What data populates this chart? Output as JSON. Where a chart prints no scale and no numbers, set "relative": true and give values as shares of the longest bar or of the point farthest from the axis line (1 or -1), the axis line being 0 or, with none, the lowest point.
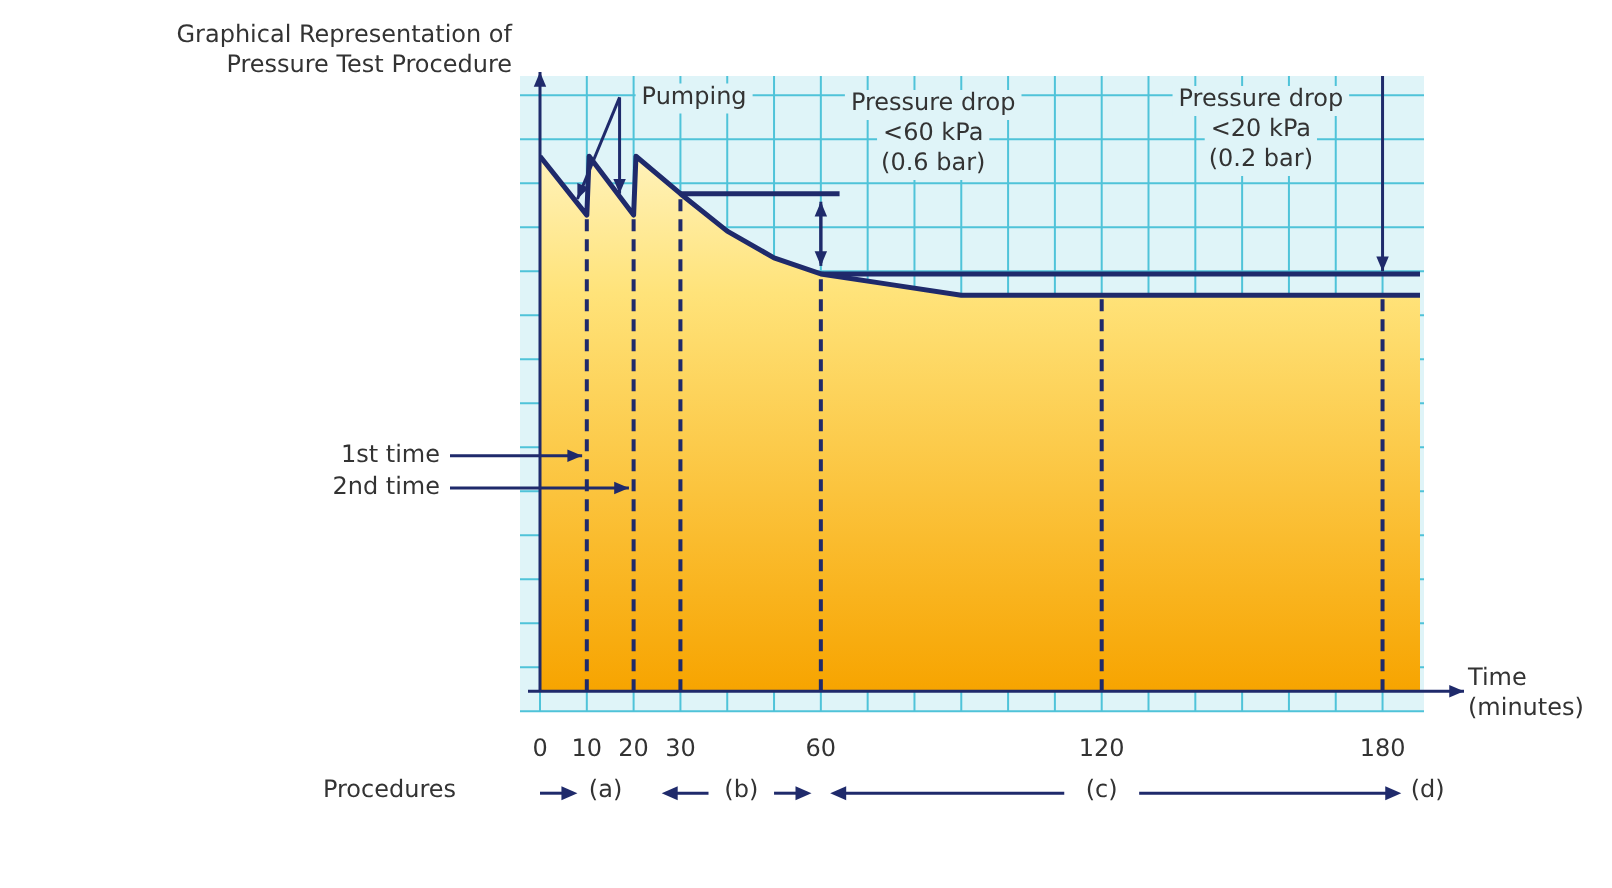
{
  "chart_data": {
    "type": "area",
    "relative": true,
    "title": "Graphical Representation of Pressure Test Procedure",
    "xlabel": "Time (minutes)",
    "xlim": [
      0,
      188
    ],
    "xticks": [
      0,
      10,
      20,
      30,
      60,
      120,
      180
    ],
    "grid": true,
    "legend": false,
    "marker": "none",
    "series": [
      {
        "type": "area",
        "color": "#1f2a6b",
        "x": [
          0,
          10,
          10.5,
          20,
          20.5,
          30,
          40,
          50,
          60,
          75,
          90,
          120,
          188
        ],
        "values": [
          1,
          0.89,
          1,
          0.89,
          1,
          0.93,
          0.86,
          0.81,
          0.78,
          0.76,
          0.74,
          0.74,
          0.74
        ]
      },
      {
        "type": "line",
        "color": "#1f2a6b",
        "x": [
          60,
          188
        ],
        "values": [
          0.78,
          0.78
        ]
      },
      {
        "type": "line",
        "color": "#1f2a6b",
        "x": [
          30,
          64
        ],
        "values": [
          0.93,
          0.93
        ]
      }
    ],
    "ref_lines": [
      {
        "axis": "x",
        "value": 10,
        "color": "#1f2a6b",
        "line_style": "dashed"
      },
      {
        "axis": "x",
        "value": 20,
        "color": "#1f2a6b",
        "line_style": "dashed"
      },
      {
        "axis": "x",
        "value": 30,
        "color": "#1f2a6b",
        "line_style": "dashed"
      },
      {
        "axis": "x",
        "value": 60,
        "color": "#1f2a6b",
        "line_style": "dashed"
      },
      {
        "axis": "x",
        "value": 120,
        "color": "#1f2a6b",
        "line_style": "dashed"
      },
      {
        "axis": "x",
        "value": 180,
        "color": "#1f2a6b",
        "line_style": "dashed"
      }
    ],
    "annotations": [
      "Pumping",
      "Pressure drop <60 kPa (0.6 bar)",
      "Pressure drop <20 kPa (0.2 bar)",
      "1st time",
      "2nd time",
      "Procedures",
      "(a)",
      "(b)",
      "(c)",
      "(d)"
    ]
  }
}
